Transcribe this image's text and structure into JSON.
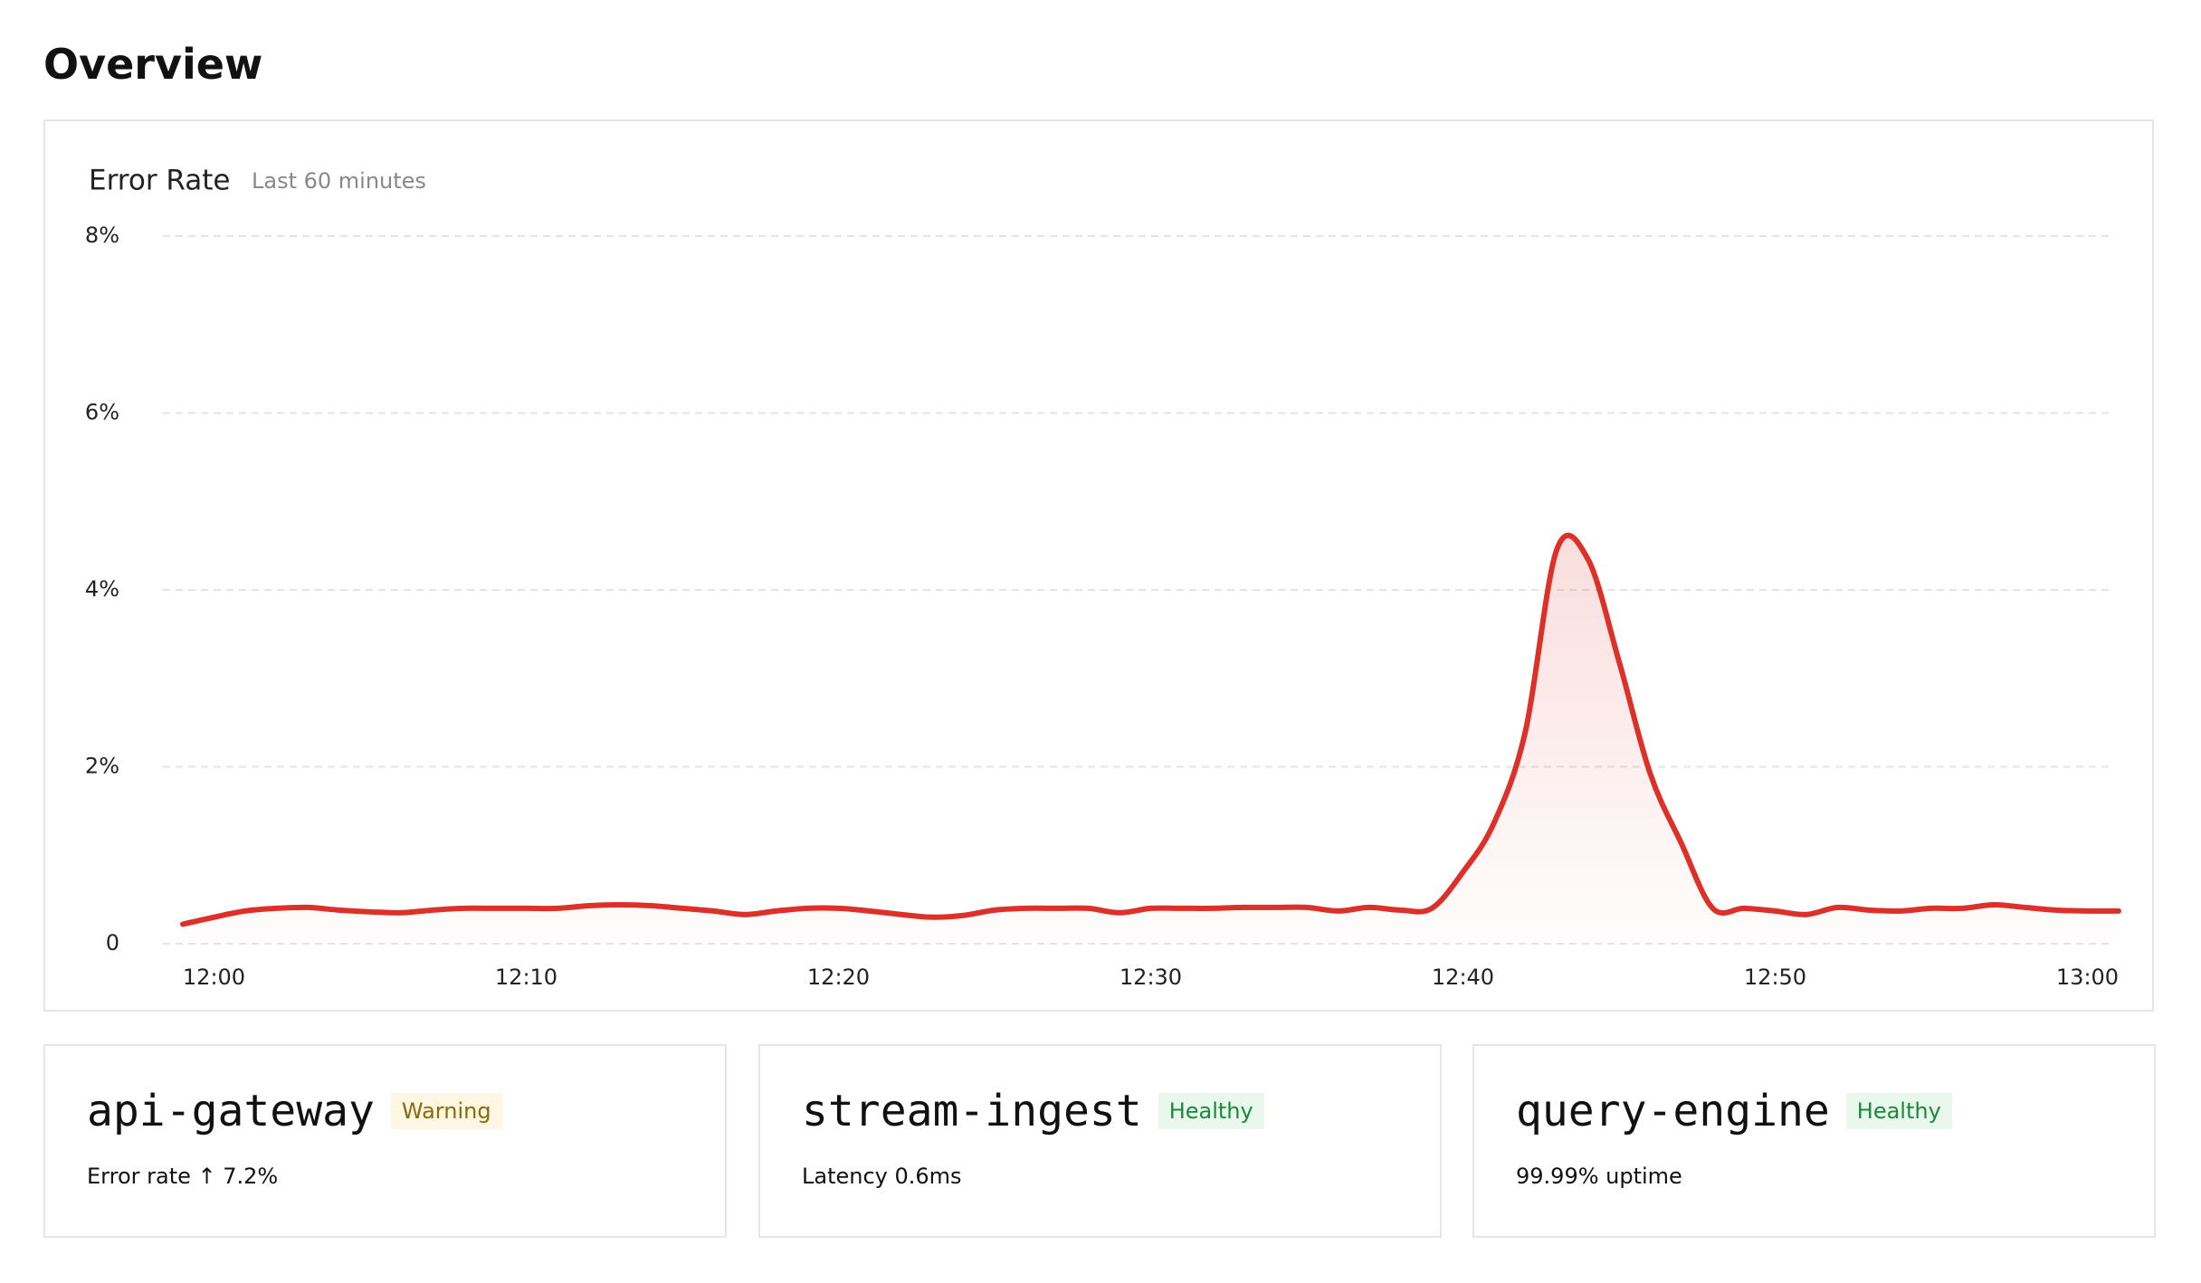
{
  "header": {
    "title": "Overview"
  },
  "chart_data": {
    "type": "line",
    "title": "Error Rate",
    "subtitle": "Last 60 minutes",
    "x": [
      "11:59",
      "12:00",
      "12:01",
      "12:02",
      "12:03",
      "12:04",
      "12:05",
      "12:06",
      "12:07",
      "12:08",
      "12:09",
      "12:10",
      "12:11",
      "12:12",
      "12:13",
      "12:14",
      "12:15",
      "12:16",
      "12:17",
      "12:18",
      "12:19",
      "12:20",
      "12:21",
      "12:22",
      "12:23",
      "12:24",
      "12:25",
      "12:26",
      "12:27",
      "12:28",
      "12:29",
      "12:30",
      "12:31",
      "12:32",
      "12:33",
      "12:34",
      "12:35",
      "12:36",
      "12:37",
      "12:38",
      "12:39",
      "12:40",
      "12:41",
      "12:42",
      "12:43",
      "12:44",
      "12:45",
      "12:46",
      "12:47",
      "12:48",
      "12:49",
      "12:50",
      "12:51",
      "12:52",
      "12:53",
      "12:54",
      "12:55",
      "12:56",
      "12:57",
      "12:58",
      "12:59",
      "13:00",
      "13:01"
    ],
    "values": [
      0.22,
      0.3,
      0.37,
      0.4,
      0.41,
      0.38,
      0.36,
      0.35,
      0.38,
      0.4,
      0.4,
      0.4,
      0.4,
      0.43,
      0.44,
      0.43,
      0.4,
      0.37,
      0.33,
      0.37,
      0.4,
      0.4,
      0.37,
      0.33,
      0.3,
      0.32,
      0.38,
      0.4,
      0.4,
      0.4,
      0.35,
      0.4,
      0.4,
      0.4,
      0.41,
      0.41,
      0.41,
      0.37,
      0.41,
      0.38,
      0.4,
      0.81,
      1.37,
      2.4,
      4.45,
      4.35,
      3.19,
      1.92,
      1.13,
      0.4,
      0.4,
      0.37,
      0.33,
      0.41,
      0.38,
      0.37,
      0.4,
      0.4,
      0.44,
      0.41,
      0.38,
      0.37,
      0.37
    ],
    "color": "#dc3029",
    "xlim": [
      "11:59",
      "13:01"
    ],
    "xticks": [
      "12:00",
      "12:10",
      "12:20",
      "12:30",
      "12:40",
      "12:50",
      "13:00"
    ],
    "ylim": [
      0,
      8
    ],
    "yticks": [
      0,
      {
        "value": 2,
        "label": "2%"
      },
      {
        "value": 4,
        "label": "4%"
      },
      {
        "value": 6,
        "label": "6%"
      },
      {
        "value": 8,
        "label": "8%"
      }
    ],
    "grid": true
  },
  "services": [
    {
      "name": "api-gateway",
      "status": "Warning",
      "detail": "Error rate ↑ 7.2%"
    },
    {
      "name": "stream-ingest",
      "status": "Healthy",
      "detail": "Latency 0.6ms"
    },
    {
      "name": "query-engine",
      "status": "Healthy",
      "detail": "99.99% uptime"
    }
  ]
}
